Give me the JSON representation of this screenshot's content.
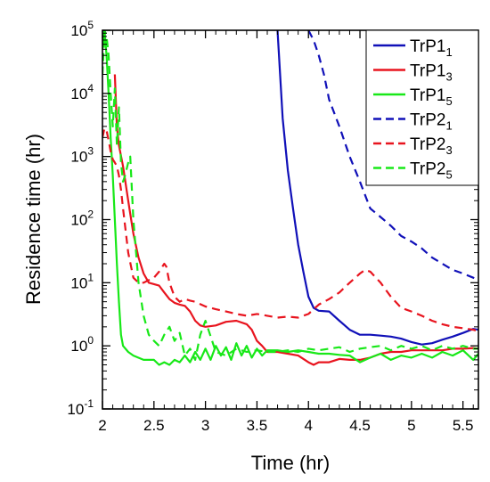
{
  "chart_data": {
    "type": "line",
    "xlabel": "Time (hr)",
    "ylabel": "Residence time (hr)",
    "xlim": [
      2.0,
      5.65
    ],
    "ylim": [
      0.1,
      100000
    ],
    "yscale": "log",
    "x_ticks": [
      2,
      2.5,
      3,
      3.5,
      4,
      4.5,
      5,
      5.5
    ],
    "x_tick_labels": [
      "2",
      "2.5",
      "3",
      "3.5",
      "4",
      "4.5",
      "5",
      "5.5"
    ],
    "y_ticks": [
      0.1,
      1,
      10,
      100,
      1000,
      10000,
      100000
    ],
    "y_tick_labels": [
      {
        "base": "10",
        "exp": "-1"
      },
      {
        "base": "10",
        "exp": "0"
      },
      {
        "base": "10",
        "exp": "1"
      },
      {
        "base": "10",
        "exp": "2"
      },
      {
        "base": "10",
        "exp": "3"
      },
      {
        "base": "10",
        "exp": "4"
      },
      {
        "base": "10",
        "exp": "5"
      }
    ],
    "grid": false,
    "legend_placement": "top-right",
    "series": [
      {
        "name": "TrP1",
        "sub": "1",
        "color": "#1010b8",
        "dash": "solid",
        "x": [
          3.7,
          3.75,
          3.8,
          3.85,
          3.9,
          3.95,
          4.0,
          4.05,
          4.1,
          4.2,
          4.3,
          4.4,
          4.5,
          4.6,
          4.7,
          4.8,
          4.9,
          5.0,
          5.1,
          5.2,
          5.3,
          5.4,
          5.5,
          5.6,
          5.65
        ],
        "y": [
          100000,
          4000,
          600,
          150,
          40,
          15,
          6,
          4,
          3.6,
          3.5,
          2.5,
          1.8,
          1.5,
          1.5,
          1.45,
          1.4,
          1.3,
          1.15,
          1.05,
          1.1,
          1.25,
          1.4,
          1.6,
          1.85,
          1.8
        ]
      },
      {
        "name": "TrP1",
        "sub": "3",
        "color": "#e8141e",
        "dash": "solid",
        "x": [
          2.12,
          2.14,
          2.16,
          2.2,
          2.25,
          2.3,
          2.35,
          2.4,
          2.45,
          2.5,
          2.55,
          2.6,
          2.65,
          2.7,
          2.75,
          2.8,
          2.85,
          2.9,
          2.95,
          3.0,
          3.1,
          3.2,
          3.3,
          3.4,
          3.45,
          3.5,
          3.55,
          3.6,
          3.7,
          3.8,
          3.9,
          4.0,
          4.05,
          4.1,
          4.2,
          4.3,
          4.4,
          4.5,
          4.6,
          4.7,
          4.8,
          4.9,
          5.0,
          5.1,
          5.2,
          5.3,
          5.4,
          5.5,
          5.6,
          5.65
        ],
        "y": [
          20000,
          3000,
          1500,
          700,
          200,
          60,
          25,
          14,
          10,
          9.5,
          9,
          7,
          5.5,
          4.8,
          4.5,
          4.3,
          3.5,
          2.5,
          2.1,
          2.0,
          2.1,
          2.4,
          2.5,
          2.2,
          1.8,
          1.2,
          1.0,
          0.8,
          0.8,
          0.75,
          0.7,
          0.55,
          0.5,
          0.55,
          0.55,
          0.62,
          0.6,
          0.6,
          0.65,
          0.75,
          0.8,
          0.8,
          0.85,
          0.85,
          0.85,
          0.85,
          0.9,
          0.9,
          0.92,
          0.9
        ]
      },
      {
        "name": "TrP1",
        "sub": "5",
        "color": "#18e818",
        "dash": "solid",
        "x": [
          2.0,
          2.02,
          2.04,
          2.06,
          2.08,
          2.1,
          2.12,
          2.14,
          2.16,
          2.18,
          2.2,
          2.25,
          2.3,
          2.4,
          2.5,
          2.55,
          2.6,
          2.65,
          2.7,
          2.75,
          2.8,
          2.85,
          2.9,
          2.95,
          3.0,
          3.05,
          3.1,
          3.15,
          3.2,
          3.25,
          3.3,
          3.35,
          3.4,
          3.45,
          3.5,
          3.55,
          3.6,
          3.7,
          3.8,
          3.9,
          4.0,
          4.1,
          4.2,
          4.3,
          4.4,
          4.5,
          4.6,
          4.7,
          4.8,
          4.9,
          5.0,
          5.1,
          5.2,
          5.3,
          5.4,
          5.5,
          5.6,
          5.65
        ],
        "y": [
          50000,
          100000,
          40000,
          10000,
          2000,
          500,
          100,
          20,
          5,
          1.5,
          1.0,
          0.8,
          0.7,
          0.6,
          0.6,
          0.5,
          0.55,
          0.5,
          0.6,
          0.55,
          0.7,
          0.55,
          0.8,
          0.6,
          0.9,
          0.6,
          1.0,
          0.7,
          0.95,
          0.6,
          1.1,
          0.7,
          1.0,
          0.65,
          0.9,
          0.7,
          0.85,
          0.85,
          0.8,
          0.85,
          0.8,
          0.75,
          0.75,
          0.72,
          0.7,
          0.55,
          0.65,
          0.75,
          0.6,
          0.7,
          0.65,
          0.75,
          0.65,
          0.8,
          0.7,
          0.85,
          0.6,
          0.75
        ]
      },
      {
        "name": "TrP2",
        "sub": "1",
        "color": "#1010b8",
        "dash": "dash",
        "x": [
          4.0,
          4.05,
          4.1,
          4.15,
          4.2,
          4.3,
          4.4,
          4.5,
          4.6,
          4.7,
          4.8,
          4.9,
          5.0,
          5.1,
          5.2,
          5.3,
          5.4,
          5.5,
          5.6,
          5.65
        ],
        "y": [
          100000,
          70000,
          40000,
          20000,
          8000,
          3000,
          1000,
          400,
          150,
          110,
          80,
          55,
          45,
          35,
          25,
          20,
          16,
          14,
          12,
          11
        ]
      },
      {
        "name": "TrP2",
        "sub": "3",
        "color": "#e8141e",
        "dash": "dash",
        "x": [
          2.0,
          2.02,
          2.04,
          2.06,
          2.08,
          2.1,
          2.12,
          2.14,
          2.16,
          2.18,
          2.2,
          2.25,
          2.3,
          2.35,
          2.4,
          2.45,
          2.5,
          2.55,
          2.6,
          2.62,
          2.65,
          2.7,
          2.75,
          2.8,
          2.85,
          2.9,
          3.0,
          3.1,
          3.2,
          3.3,
          3.4,
          3.5,
          3.6,
          3.7,
          3.8,
          3.9,
          4.0,
          4.1,
          4.2,
          4.3,
          4.4,
          4.5,
          4.55,
          4.6,
          4.7,
          4.8,
          4.9,
          5.0,
          5.1,
          5.2,
          5.3,
          5.4,
          5.5,
          5.6,
          5.65
        ],
        "y": [
          2000,
          2800,
          2600,
          1800,
          1200,
          900,
          800,
          700,
          500,
          300,
          150,
          30,
          12,
          10,
          10,
          11,
          12,
          15,
          20,
          18,
          10,
          6,
          5,
          5.5,
          5.2,
          5,
          4.2,
          3.8,
          3.5,
          3.2,
          3.0,
          3.2,
          3.0,
          2.8,
          2.9,
          2.8,
          3.2,
          4.5,
          5.5,
          7,
          10,
          14,
          16,
          15,
          10,
          6,
          4,
          3.5,
          3.0,
          2.5,
          2.2,
          2.0,
          1.9,
          1.8,
          1.7
        ]
      },
      {
        "name": "TrP2",
        "sub": "5",
        "color": "#18e818",
        "dash": "dash",
        "x": [
          2.0,
          2.02,
          2.04,
          2.06,
          2.08,
          2.1,
          2.12,
          2.14,
          2.16,
          2.18,
          2.2,
          2.22,
          2.25,
          2.27,
          2.3,
          2.35,
          2.4,
          2.45,
          2.5,
          2.55,
          2.6,
          2.65,
          2.7,
          2.75,
          2.8,
          2.85,
          2.9,
          2.95,
          3.0,
          3.1,
          3.2,
          3.3,
          3.4,
          3.5,
          3.6,
          3.7,
          3.8,
          3.9,
          4.0,
          4.1,
          4.2,
          4.3,
          4.4,
          4.5,
          4.6,
          4.7,
          4.8,
          4.9,
          5.0,
          5.1,
          5.2,
          5.3,
          5.4,
          5.5,
          5.6,
          5.65
        ],
        "y": [
          20000,
          100000,
          80000,
          40000,
          10000,
          3000,
          12000,
          1500,
          6000,
          800,
          400,
          500,
          800,
          1000,
          100,
          10,
          3,
          1.5,
          1.2,
          1.0,
          1.5,
          2.0,
          1.2,
          1.6,
          0.7,
          0.9,
          0.6,
          1.5,
          2.5,
          0.8,
          0.7,
          0.9,
          0.8,
          0.85,
          0.8,
          0.8,
          0.85,
          0.8,
          0.9,
          0.85,
          0.9,
          0.95,
          0.8,
          0.9,
          0.95,
          1.0,
          0.85,
          1.0,
          0.9,
          1.0,
          0.85,
          1.0,
          0.9,
          1.0,
          0.9,
          0.9
        ]
      }
    ]
  }
}
